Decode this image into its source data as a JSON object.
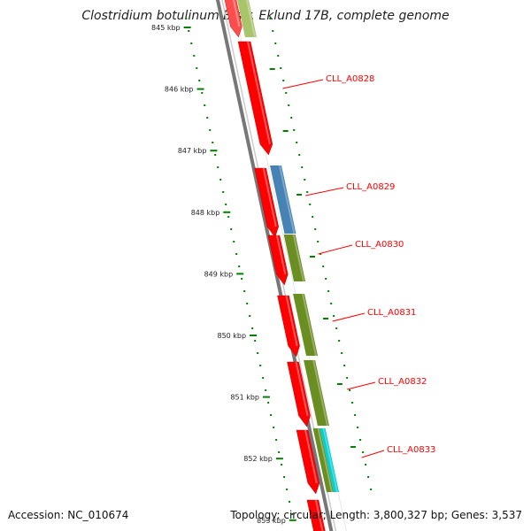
{
  "title": "Clostridium botulinum B str. Eklund 17B, complete genome",
  "footer": {
    "accession": "Accession: NC_010674",
    "summary": "Topology: circular; Length: 3,800,327 bp; Genes: 3,537"
  },
  "scale": {
    "ticks": [
      "845 kbp",
      "846 kbp",
      "847 kbp",
      "848 kbp",
      "849 kbp",
      "850 kbp",
      "851 kbp",
      "852 kbp",
      "853 kbp"
    ]
  },
  "colors": {
    "backbone": "#777777",
    "strand_red": "#ff0000",
    "cog_green": "#6b8e23",
    "cog_blue": "#4682b4",
    "cog_cyan": "#00ced1",
    "label_red": "#ff0000",
    "tick_green": "#008000"
  },
  "genes": [
    {
      "label": "CLL_A0828"
    },
    {
      "label": "CLL_A0829"
    },
    {
      "label": "CLL_A0830"
    },
    {
      "label": "CLL_A0831"
    },
    {
      "label": "CLL_A0832"
    },
    {
      "label": "CLL_A0833"
    }
  ]
}
